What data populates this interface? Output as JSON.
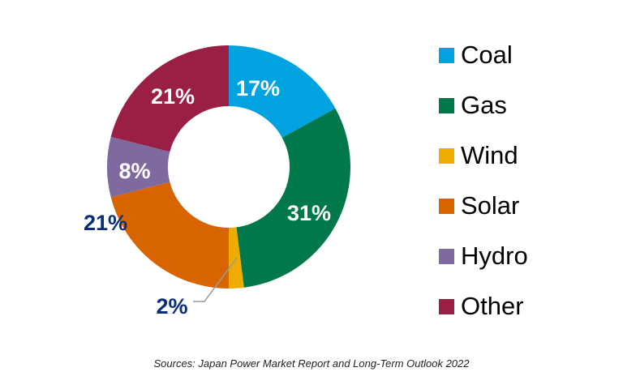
{
  "chart_data": {
    "type": "pie",
    "variant": "donut",
    "categories": [
      "Coal",
      "Gas",
      "Wind",
      "Solar",
      "Hydro",
      "Other"
    ],
    "values": [
      17,
      31,
      2,
      21,
      8,
      21
    ],
    "labels": [
      "17%",
      "31%",
      "2%",
      "21%",
      "8%",
      "21%"
    ],
    "colors": [
      "#00a3e0",
      "#00784a",
      "#f0ab00",
      "#d86400",
      "#7f6aa0",
      "#9a1f45"
    ],
    "label_colors": {
      "inside": "#ffffff",
      "outside": "#0a2d7a"
    },
    "legend": {
      "placement": "right",
      "entries": [
        "Coal",
        "Gas",
        "Wind",
        "Solar",
        "Hydro",
        "Other"
      ]
    },
    "source": "Sources: Japan Power Market Report and Long-Term Outlook 2022"
  }
}
